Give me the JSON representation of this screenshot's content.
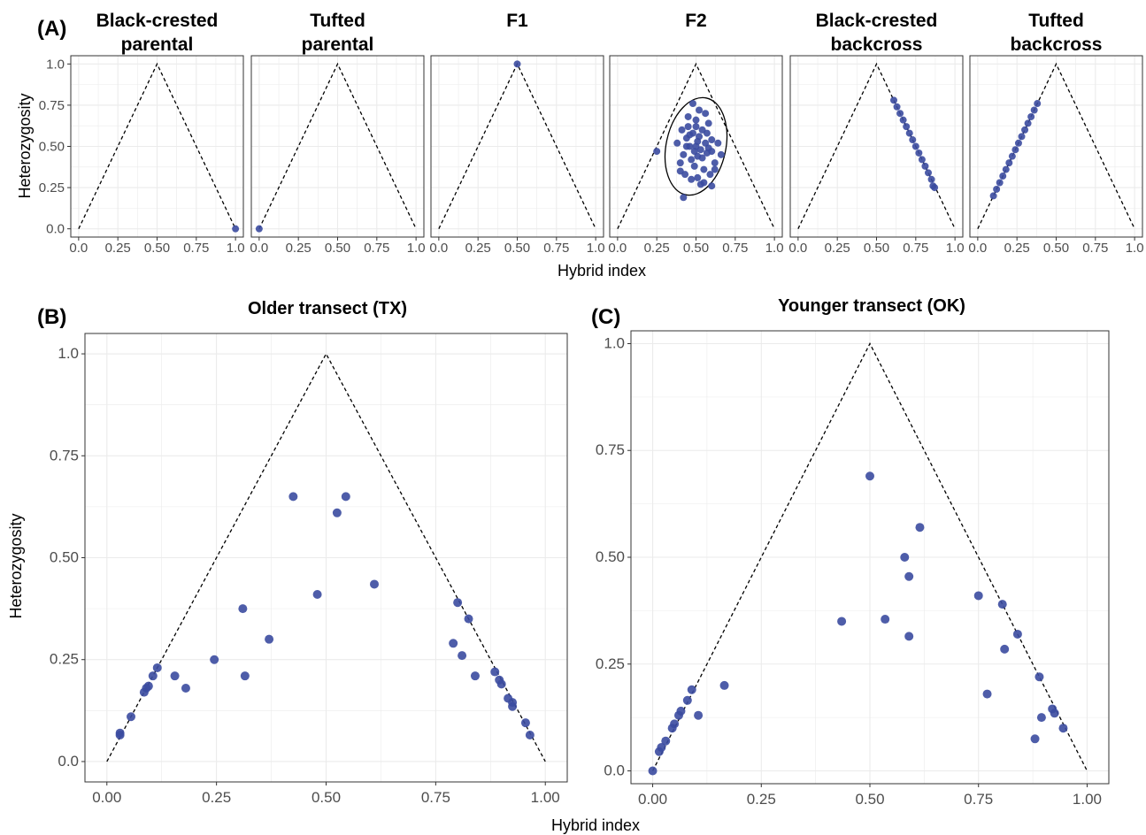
{
  "panel_labels": {
    "a": "(A)",
    "b": "(B)",
    "c": "(C)"
  },
  "colors": {
    "point": "#3b4ba0",
    "boundary": "#000000",
    "grid": "#ebebeb",
    "frame": "#333333"
  },
  "chart_data": [
    {
      "type": "scatter",
      "panel": "(A)",
      "ylabel": "Heterozygosity",
      "xlabel": "Hybrid index",
      "xlim": [
        0,
        1
      ],
      "ylim": [
        0,
        1
      ],
      "x_ticks": [
        "0.0",
        "0.25",
        "0.50",
        "0.75",
        "1.0"
      ],
      "y_ticks": [
        "0.0",
        "0.25",
        "0.50",
        "0.75",
        "1.0"
      ],
      "grid": true,
      "facets": [
        {
          "title_lines": [
            "Black-crested",
            "parental"
          ],
          "points": [
            [
              1.0,
              0.0
            ]
          ]
        },
        {
          "title_lines": [
            "Tufted",
            "parental"
          ],
          "points": [
            [
              0.0,
              0.0
            ]
          ]
        },
        {
          "title_lines": [
            "F1"
          ],
          "points": [
            [
              0.5,
              1.0
            ]
          ]
        },
        {
          "title_lines": [
            "F2"
          ],
          "ellipse": {
            "cx": 0.5,
            "cy": 0.5,
            "rx": 0.19,
            "ry": 0.3
          },
          "points": [
            [
              0.25,
              0.47
            ],
            [
              0.38,
              0.52
            ],
            [
              0.4,
              0.4
            ],
            [
              0.42,
              0.45
            ],
            [
              0.44,
              0.55
            ],
            [
              0.45,
              0.62
            ],
            [
              0.46,
              0.5
            ],
            [
              0.47,
              0.42
            ],
            [
              0.48,
              0.58
            ],
            [
              0.49,
              0.38
            ],
            [
              0.5,
              0.66
            ],
            [
              0.5,
              0.5
            ],
            [
              0.51,
              0.44
            ],
            [
              0.52,
              0.56
            ],
            [
              0.53,
              0.48
            ],
            [
              0.54,
              0.6
            ],
            [
              0.55,
              0.36
            ],
            [
              0.56,
              0.52
            ],
            [
              0.57,
              0.46
            ],
            [
              0.58,
              0.64
            ],
            [
              0.6,
              0.54
            ],
            [
              0.62,
              0.4
            ],
            [
              0.64,
              0.52
            ],
            [
              0.66,
              0.45
            ],
            [
              0.43,
              0.33
            ],
            [
              0.47,
              0.3
            ],
            [
              0.51,
              0.31
            ],
            [
              0.55,
              0.28
            ],
            [
              0.59,
              0.33
            ],
            [
              0.45,
              0.68
            ],
            [
              0.52,
              0.72
            ],
            [
              0.56,
              0.7
            ],
            [
              0.48,
              0.76
            ],
            [
              0.53,
              0.27
            ],
            [
              0.42,
              0.19
            ],
            [
              0.6,
              0.26
            ],
            [
              0.62,
              0.36
            ],
            [
              0.4,
              0.35
            ],
            [
              0.41,
              0.6
            ],
            [
              0.57,
              0.58
            ],
            [
              0.49,
              0.47
            ],
            [
              0.51,
              0.53
            ],
            [
              0.54,
              0.43
            ],
            [
              0.46,
              0.57
            ],
            [
              0.58,
              0.49
            ],
            [
              0.44,
              0.5
            ],
            [
              0.6,
              0.47
            ],
            [
              0.5,
              0.62
            ]
          ]
        },
        {
          "title_lines": [
            "Black-crested",
            "backcross"
          ],
          "points": [
            [
              0.61,
              0.78
            ],
            [
              0.63,
              0.74
            ],
            [
              0.65,
              0.7
            ],
            [
              0.67,
              0.66
            ],
            [
              0.69,
              0.62
            ],
            [
              0.71,
              0.58
            ],
            [
              0.73,
              0.54
            ],
            [
              0.75,
              0.5
            ],
            [
              0.77,
              0.46
            ],
            [
              0.79,
              0.42
            ],
            [
              0.81,
              0.38
            ],
            [
              0.83,
              0.34
            ],
            [
              0.85,
              0.3
            ],
            [
              0.86,
              0.26
            ],
            [
              0.87,
              0.25
            ]
          ]
        },
        {
          "title_lines": [
            "Tufted",
            "backcross"
          ],
          "points": [
            [
              0.1,
              0.2
            ],
            [
              0.12,
              0.24
            ],
            [
              0.14,
              0.28
            ],
            [
              0.16,
              0.32
            ],
            [
              0.18,
              0.36
            ],
            [
              0.2,
              0.4
            ],
            [
              0.22,
              0.44
            ],
            [
              0.24,
              0.48
            ],
            [
              0.26,
              0.52
            ],
            [
              0.28,
              0.56
            ],
            [
              0.3,
              0.6
            ],
            [
              0.32,
              0.64
            ],
            [
              0.34,
              0.68
            ],
            [
              0.36,
              0.72
            ],
            [
              0.38,
              0.76
            ]
          ]
        }
      ]
    },
    {
      "type": "scatter",
      "panel": "(B)",
      "title": "Older transect (TX)",
      "ylabel": "Heterozygosity",
      "xlim": [
        -0.05,
        1.05
      ],
      "ylim": [
        -0.05,
        1.05
      ],
      "x_ticks": [
        "0.00",
        "0.25",
        "0.50",
        "0.75",
        "1.00"
      ],
      "y_ticks": [
        "0.0",
        "0.25",
        "0.50",
        "0.75",
        "1.0"
      ],
      "grid": true,
      "points": [
        [
          0.03,
          0.07
        ],
        [
          0.03,
          0.065
        ],
        [
          0.055,
          0.11
        ],
        [
          0.09,
          0.18
        ],
        [
          0.085,
          0.17
        ],
        [
          0.095,
          0.185
        ],
        [
          0.105,
          0.21
        ],
        [
          0.115,
          0.23
        ],
        [
          0.155,
          0.21
        ],
        [
          0.18,
          0.18
        ],
        [
          0.245,
          0.25
        ],
        [
          0.31,
          0.375
        ],
        [
          0.315,
          0.21
        ],
        [
          0.37,
          0.3
        ],
        [
          0.425,
          0.65
        ],
        [
          0.48,
          0.41
        ],
        [
          0.525,
          0.61
        ],
        [
          0.545,
          0.65
        ],
        [
          0.61,
          0.435
        ],
        [
          0.79,
          0.29
        ],
        [
          0.8,
          0.39
        ],
        [
          0.81,
          0.26
        ],
        [
          0.825,
          0.35
        ],
        [
          0.84,
          0.21
        ],
        [
          0.885,
          0.22
        ],
        [
          0.895,
          0.2
        ],
        [
          0.9,
          0.19
        ],
        [
          0.915,
          0.155
        ],
        [
          0.925,
          0.135
        ],
        [
          0.925,
          0.145
        ],
        [
          0.955,
          0.095
        ],
        [
          0.965,
          0.065
        ]
      ]
    },
    {
      "type": "scatter",
      "panel": "(C)",
      "title": "Younger transect (OK)",
      "xlabel": "Hybrid index",
      "xlim": [
        -0.05,
        1.05
      ],
      "ylim": [
        -0.03,
        1.03
      ],
      "x_ticks": [
        "0.00",
        "0.25",
        "0.50",
        "0.75",
        "1.00"
      ],
      "y_ticks": [
        "0.0",
        "0.25",
        "0.50",
        "0.75",
        "1.0"
      ],
      "grid": true,
      "points": [
        [
          0.0,
          0.0
        ],
        [
          0.015,
          0.045
        ],
        [
          0.02,
          0.055
        ],
        [
          0.03,
          0.07
        ],
        [
          0.045,
          0.1
        ],
        [
          0.05,
          0.11
        ],
        [
          0.06,
          0.13
        ],
        [
          0.065,
          0.14
        ],
        [
          0.08,
          0.165
        ],
        [
          0.09,
          0.19
        ],
        [
          0.105,
          0.13
        ],
        [
          0.165,
          0.2
        ],
        [
          0.435,
          0.35
        ],
        [
          0.5,
          0.69
        ],
        [
          0.535,
          0.355
        ],
        [
          0.58,
          0.5
        ],
        [
          0.59,
          0.455
        ],
        [
          0.59,
          0.315
        ],
        [
          0.615,
          0.57
        ],
        [
          0.75,
          0.41
        ],
        [
          0.77,
          0.18
        ],
        [
          0.805,
          0.39
        ],
        [
          0.81,
          0.285
        ],
        [
          0.84,
          0.32
        ],
        [
          0.88,
          0.075
        ],
        [
          0.89,
          0.22
        ],
        [
          0.895,
          0.125
        ],
        [
          0.92,
          0.145
        ],
        [
          0.925,
          0.135
        ],
        [
          0.945,
          0.1
        ]
      ]
    }
  ]
}
